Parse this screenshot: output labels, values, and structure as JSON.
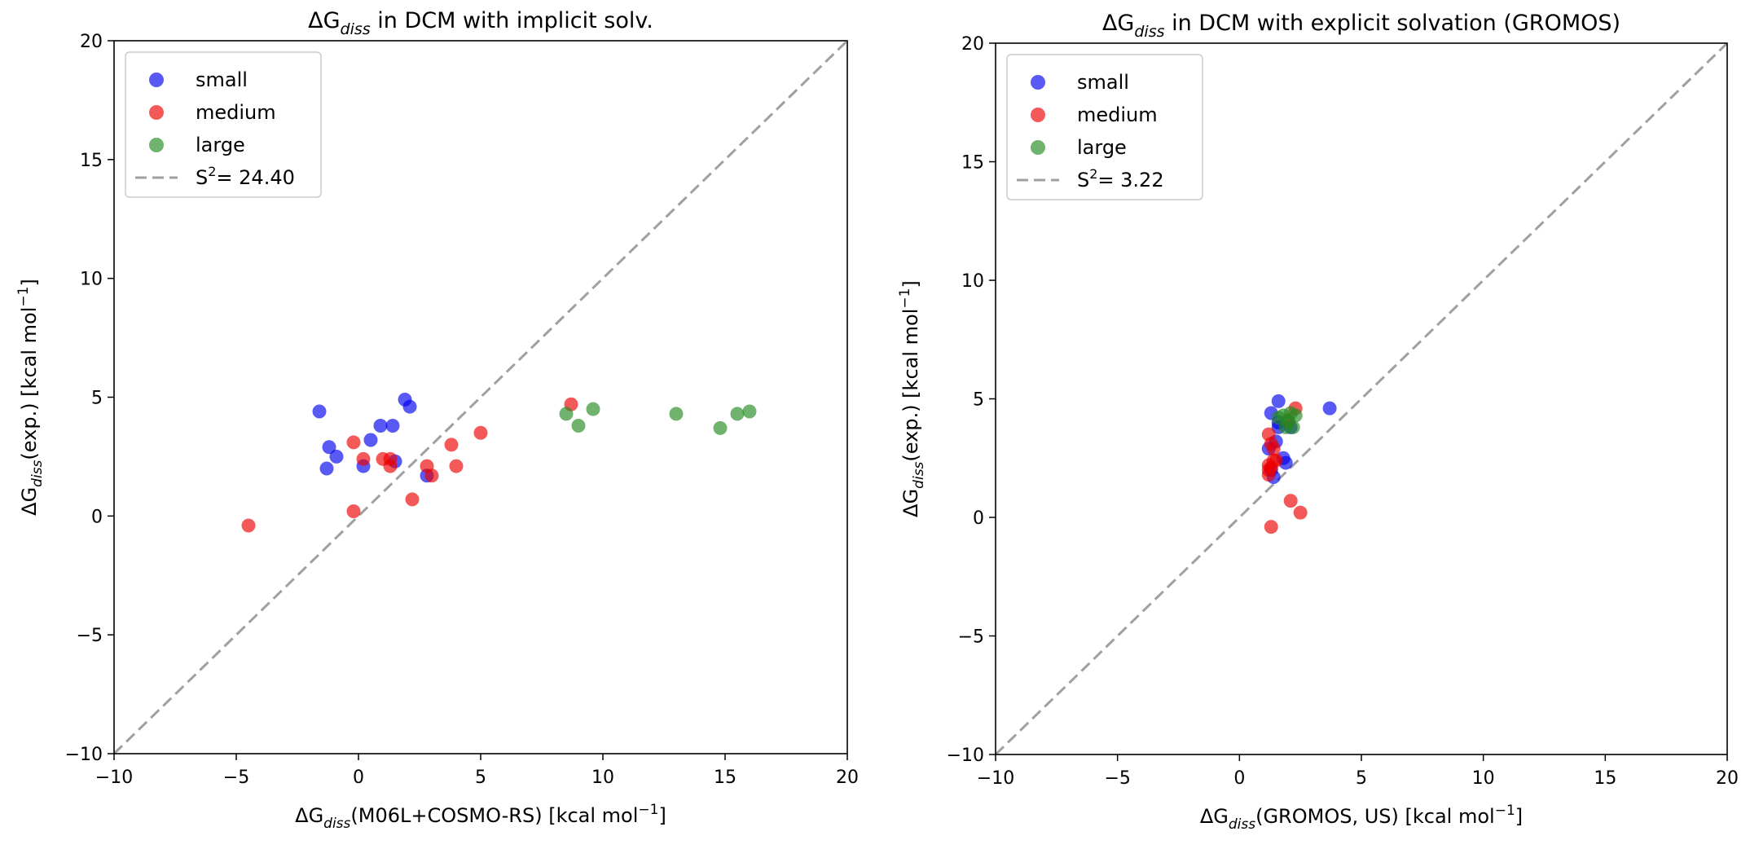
{
  "chart_data": [
    {
      "type": "scatter",
      "title": {
        "pre": "ΔG",
        "sub": "diss",
        "post": " in DCM with implicit solv."
      },
      "xlabel": {
        "pre": "ΔG",
        "sub": "diss",
        "post": "(M06L+COSMO-RS) [kcal mol",
        "sup": "−1",
        "end": "]"
      },
      "ylabel": {
        "pre": "ΔG",
        "sub": "diss",
        "post": "(exp.) [kcal mol",
        "sup": "−1",
        "end": "]"
      },
      "xlim": [
        -10,
        20
      ],
      "ylim": [
        -10,
        20
      ],
      "xticks": [
        -10,
        -5,
        0,
        5,
        10,
        15,
        20
      ],
      "yticks": [
        -10,
        -5,
        0,
        5,
        10,
        15,
        20
      ],
      "tick_labels": [
        "−10",
        "−5",
        "0",
        "5",
        "10",
        "15",
        "20"
      ],
      "grid": false,
      "legend": {
        "position": "top-left",
        "line_label": {
          "pre": "S",
          "sup": "2",
          "post": "= 24.40"
        }
      },
      "diagonal": {
        "from": [
          -10,
          -10
        ],
        "to": [
          20,
          20
        ],
        "color": "#a0a0a0"
      },
      "series": [
        {
          "name": "small",
          "color": "#0000ee",
          "points": [
            [
              -1.6,
              4.4
            ],
            [
              -1.2,
              2.9
            ],
            [
              -1.3,
              2.0
            ],
            [
              -0.9,
              2.5
            ],
            [
              0.2,
              2.1
            ],
            [
              0.5,
              3.2
            ],
            [
              0.9,
              3.8
            ],
            [
              1.4,
              3.8
            ],
            [
              1.5,
              2.3
            ],
            [
              1.9,
              4.9
            ],
            [
              2.1,
              4.6
            ],
            [
              2.8,
              1.7
            ]
          ]
        },
        {
          "name": "medium",
          "color": "#ee0000",
          "points": [
            [
              -4.5,
              -0.4
            ],
            [
              -0.2,
              3.1
            ],
            [
              -0.2,
              0.2
            ],
            [
              0.2,
              2.4
            ],
            [
              1.0,
              2.4
            ],
            [
              1.3,
              2.1
            ],
            [
              1.3,
              2.4
            ],
            [
              2.2,
              0.7
            ],
            [
              2.8,
              2.1
            ],
            [
              3.0,
              1.7
            ],
            [
              3.8,
              3.0
            ],
            [
              4.0,
              2.1
            ],
            [
              5.0,
              3.5
            ],
            [
              8.7,
              4.7
            ]
          ]
        },
        {
          "name": "large",
          "color": "#228b22",
          "points": [
            [
              8.5,
              4.3
            ],
            [
              9.0,
              3.8
            ],
            [
              9.6,
              4.5
            ],
            [
              13.0,
              4.3
            ],
            [
              14.8,
              3.7
            ],
            [
              15.5,
              4.3
            ],
            [
              16.0,
              4.4
            ]
          ]
        }
      ]
    },
    {
      "type": "scatter",
      "title": {
        "pre": "ΔG",
        "sub": "diss",
        "post": " in DCM with explicit solvation (GROMOS)"
      },
      "xlabel": {
        "pre": "ΔG",
        "sub": "diss",
        "post": "(GROMOS, US) [kcal mol",
        "sup": "−1",
        "end": "]"
      },
      "ylabel": {
        "pre": "ΔG",
        "sub": "diss",
        "post": "(exp.) [kcal mol",
        "sup": "−1",
        "end": "]"
      },
      "xlim": [
        -10,
        20
      ],
      "ylim": [
        -10,
        20
      ],
      "xticks": [
        -10,
        -5,
        0,
        5,
        10,
        15,
        20
      ],
      "yticks": [
        -10,
        -5,
        0,
        5,
        10,
        15,
        20
      ],
      "tick_labels": [
        "−10",
        "−5",
        "0",
        "5",
        "10",
        "15",
        "20"
      ],
      "grid": false,
      "legend": {
        "position": "top-left",
        "line_label": {
          "pre": "S",
          "sup": "2",
          "post": "= 3.22"
        }
      },
      "diagonal": {
        "from": [
          -10,
          -10
        ],
        "to": [
          20,
          20
        ],
        "color": "#a0a0a0"
      },
      "series": [
        {
          "name": "small",
          "color": "#0000ee",
          "points": [
            [
              1.3,
              4.4
            ],
            [
              1.6,
              4.9
            ],
            [
              1.6,
              3.8
            ],
            [
              1.2,
              2.9
            ],
            [
              1.3,
              2.0
            ],
            [
              1.8,
              2.5
            ],
            [
              1.4,
              1.7
            ],
            [
              1.9,
              2.3
            ],
            [
              2.1,
              3.8
            ],
            [
              1.5,
              3.2
            ],
            [
              3.7,
              4.6
            ],
            [
              1.6,
              4.0
            ]
          ]
        },
        {
          "name": "medium",
          "color": "#ee0000",
          "points": [
            [
              1.3,
              -0.4
            ],
            [
              2.5,
              0.2
            ],
            [
              2.1,
              0.7
            ],
            [
              1.2,
              3.5
            ],
            [
              1.3,
              3.1
            ],
            [
              1.4,
              2.4
            ],
            [
              1.3,
              2.1
            ],
            [
              1.2,
              1.8
            ],
            [
              1.5,
              2.4
            ],
            [
              1.2,
              2.2
            ],
            [
              2.0,
              4.1
            ],
            [
              2.3,
              4.6
            ],
            [
              1.4,
              2.9
            ],
            [
              1.2,
              2.0
            ]
          ]
        },
        {
          "name": "large",
          "color": "#228b22",
          "points": [
            [
              1.8,
              4.3
            ],
            [
              2.1,
              4.4
            ],
            [
              2.3,
              4.3
            ],
            [
              1.9,
              3.8
            ],
            [
              2.2,
              3.8
            ],
            [
              1.6,
              4.2
            ],
            [
              2.0,
              4.0
            ]
          ]
        }
      ]
    }
  ]
}
